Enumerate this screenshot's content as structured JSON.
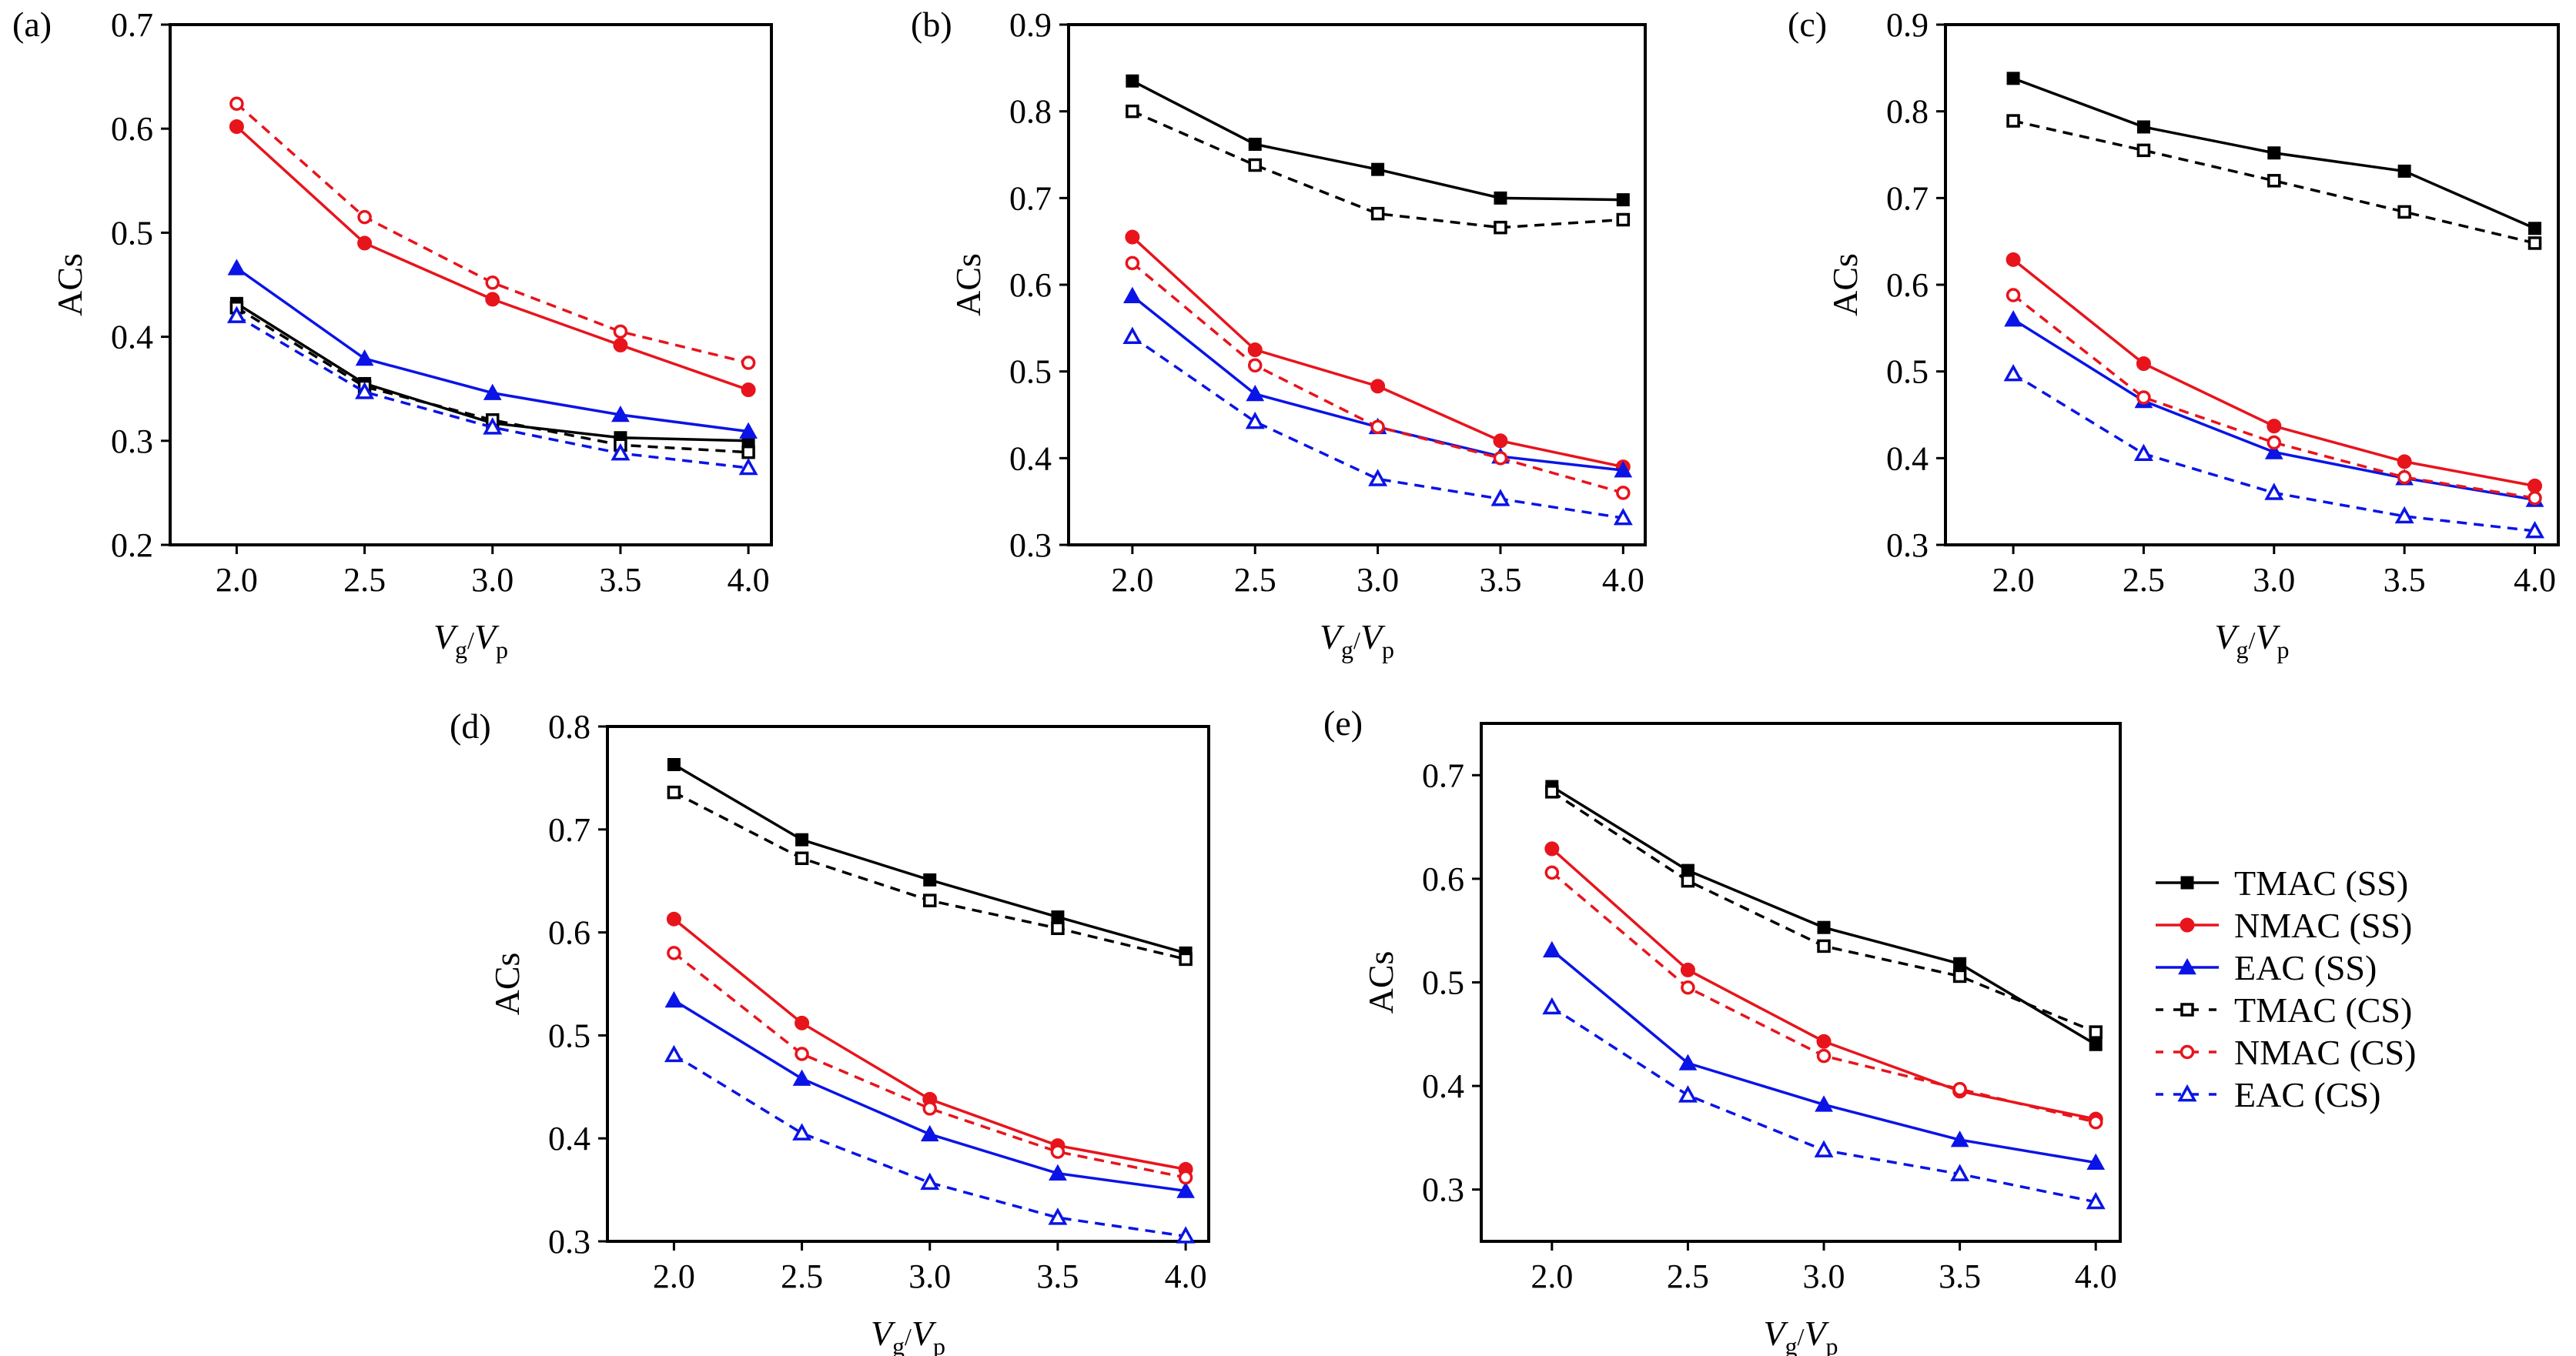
{
  "chart_data": {
    "type": "line",
    "x": [
      2.0,
      2.5,
      3.0,
      3.5,
      4.0
    ],
    "x_tick_labels": [
      "2.0",
      "2.5",
      "3.0",
      "3.5",
      "4.0"
    ],
    "xlim": [
      1.74,
      4.09
    ],
    "xlabel": {
      "v1": "V",
      "s1": "g",
      "sep": "/",
      "v2": "V",
      "s2": "p"
    },
    "ylabel": "ACs",
    "grid": false,
    "legend": {
      "placement": "bottom-right, outside panels",
      "entries": [
        "TMAC (SS)",
        "NMAC (SS)",
        "EAC (SS)",
        "TMAC (CS)",
        "NMAC (CS)",
        "EAC (CS)"
      ]
    },
    "series_styles": [
      {
        "name": "TMAC (SS)",
        "color": "#000000",
        "dash": false,
        "marker": "square",
        "filled": true
      },
      {
        "name": "NMAC (SS)",
        "color": "#e8141c",
        "dash": false,
        "marker": "circle",
        "filled": true
      },
      {
        "name": "EAC (SS)",
        "color": "#0a14e6",
        "dash": false,
        "marker": "triangle",
        "filled": true
      },
      {
        "name": "TMAC (CS)",
        "color": "#000000",
        "dash": true,
        "marker": "square",
        "filled": false
      },
      {
        "name": "NMAC (CS)",
        "color": "#e8141c",
        "dash": true,
        "marker": "circle",
        "filled": false
      },
      {
        "name": "EAC (CS)",
        "color": "#0a14e6",
        "dash": true,
        "marker": "triangle",
        "filled": false
      }
    ],
    "panels": [
      {
        "label": "(a)",
        "ylim": [
          0.2,
          0.7
        ],
        "yticks": [
          "0.2",
          "0.3",
          "0.4",
          "0.5",
          "0.6",
          "0.7"
        ],
        "series": [
          {
            "name": "TMAC (SS)",
            "values": [
              0.432,
              0.355,
              0.317,
              0.303,
              0.3
            ]
          },
          {
            "name": "NMAC (SS)",
            "values": [
              0.602,
              0.49,
              0.436,
              0.392,
              0.349
            ]
          },
          {
            "name": "EAC (SS)",
            "values": [
              0.466,
              0.379,
              0.346,
              0.325,
              0.309
            ]
          },
          {
            "name": "TMAC (CS)",
            "values": [
              0.428,
              0.352,
              0.32,
              0.296,
              0.289
            ]
          },
          {
            "name": "NMAC (CS)",
            "values": [
              0.624,
              0.515,
              0.452,
              0.405,
              0.375
            ]
          },
          {
            "name": "EAC (CS)",
            "values": [
              0.42,
              0.347,
              0.313,
              0.288,
              0.274
            ]
          }
        ]
      },
      {
        "label": "(b)",
        "ylim": [
          0.3,
          0.9
        ],
        "yticks": [
          "0.3",
          "0.4",
          "0.5",
          "0.6",
          "0.7",
          "0.8",
          "0.9"
        ],
        "series": [
          {
            "name": "TMAC (SS)",
            "values": [
              0.835,
              0.762,
              0.733,
              0.7,
              0.698
            ]
          },
          {
            "name": "NMAC (SS)",
            "values": [
              0.655,
              0.525,
              0.483,
              0.42,
              0.39
            ]
          },
          {
            "name": "EAC (SS)",
            "values": [
              0.587,
              0.474,
              0.436,
              0.402,
              0.386
            ]
          },
          {
            "name": "TMAC (CS)",
            "values": [
              0.8,
              0.738,
              0.682,
              0.666,
              0.675
            ]
          },
          {
            "name": "NMAC (CS)",
            "values": [
              0.625,
              0.507,
              0.436,
              0.4,
              0.36
            ]
          },
          {
            "name": "EAC (CS)",
            "values": [
              0.54,
              0.442,
              0.376,
              0.353,
              0.331
            ]
          }
        ]
      },
      {
        "label": "(c)",
        "ylim": [
          0.3,
          0.9
        ],
        "yticks": [
          "0.3",
          "0.4",
          "0.5",
          "0.6",
          "0.7",
          "0.8",
          "0.9"
        ],
        "series": [
          {
            "name": "TMAC (SS)",
            "values": [
              0.838,
              0.782,
              0.752,
              0.731,
              0.665
            ]
          },
          {
            "name": "NMAC (SS)",
            "values": [
              0.629,
              0.509,
              0.437,
              0.396,
              0.368
            ]
          },
          {
            "name": "EAC (SS)",
            "values": [
              0.56,
              0.466,
              0.407,
              0.377,
              0.352
            ]
          },
          {
            "name": "TMAC (CS)",
            "values": [
              0.789,
              0.755,
              0.72,
              0.684,
              0.648
            ]
          },
          {
            "name": "NMAC (CS)",
            "values": [
              0.588,
              0.47,
              0.418,
              0.378,
              0.354
            ]
          },
          {
            "name": "EAC (CS)",
            "values": [
              0.497,
              0.405,
              0.36,
              0.333,
              0.316
            ]
          }
        ]
      },
      {
        "label": "(d)",
        "ylim": [
          0.3,
          0.8
        ],
        "yticks": [
          "0.3",
          "0.4",
          "0.5",
          "0.6",
          "0.7",
          "0.8"
        ],
        "series": [
          {
            "name": "TMAC (SS)",
            "values": [
              0.763,
              0.69,
              0.651,
              0.615,
              0.58
            ]
          },
          {
            "name": "NMAC (SS)",
            "values": [
              0.613,
              0.512,
              0.438,
              0.393,
              0.37
            ]
          },
          {
            "name": "EAC (SS)",
            "values": [
              0.534,
              0.458,
              0.404,
              0.366,
              0.349
            ]
          },
          {
            "name": "TMAC (CS)",
            "values": [
              0.736,
              0.672,
              0.631,
              0.604,
              0.574
            ]
          },
          {
            "name": "NMAC (CS)",
            "values": [
              0.58,
              0.482,
              0.429,
              0.387,
              0.362
            ]
          },
          {
            "name": "EAC (CS)",
            "values": [
              0.481,
              0.405,
              0.357,
              0.323,
              0.305
            ]
          }
        ]
      },
      {
        "label": "(e)",
        "ylim": [
          0.25,
          0.75
        ],
        "yticks": [
          "0.3",
          "0.4",
          "0.5",
          "0.6",
          "0.7"
        ],
        "series": [
          {
            "name": "TMAC (SS)",
            "values": [
              0.689,
              0.608,
              0.553,
              0.518,
              0.44
            ]
          },
          {
            "name": "NMAC (SS)",
            "values": [
              0.629,
              0.512,
              0.443,
              0.395,
              0.368
            ]
          },
          {
            "name": "EAC (SS)",
            "values": [
              0.531,
              0.422,
              0.382,
              0.348,
              0.326
            ]
          },
          {
            "name": "TMAC (CS)",
            "values": [
              0.684,
              0.598,
              0.535,
              0.506,
              0.452
            ]
          },
          {
            "name": "NMAC (CS)",
            "values": [
              0.606,
              0.495,
              0.429,
              0.397,
              0.365
            ]
          },
          {
            "name": "EAC (CS)",
            "values": [
              0.476,
              0.391,
              0.338,
              0.315,
              0.288
            ]
          }
        ]
      }
    ]
  }
}
